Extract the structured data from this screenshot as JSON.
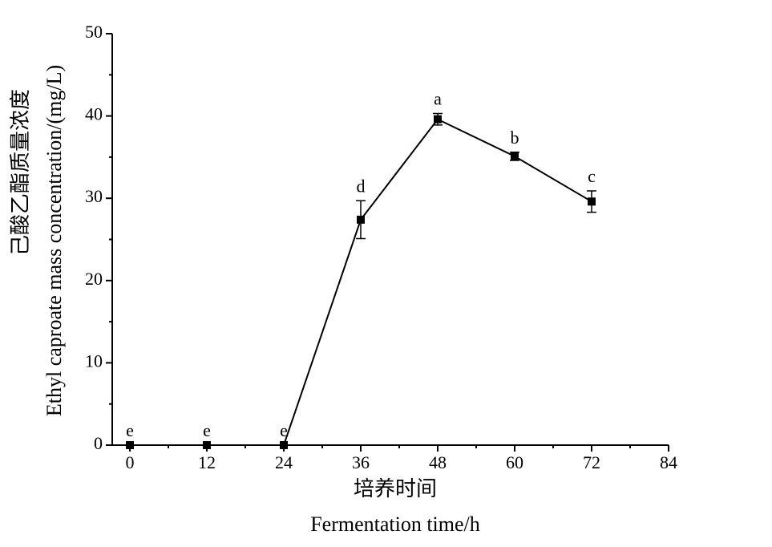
{
  "chart_data": {
    "type": "line",
    "x_label": [
      "培养时间",
      "Fermentation time/h"
    ],
    "y_label": [
      "己酸乙酯质量浓度",
      "Ethyl caproate mass concentration/(mg/L)"
    ],
    "x": [
      0,
      12,
      24,
      36,
      48,
      60,
      72
    ],
    "series": [
      {
        "color": "#000000",
        "values": [
          0,
          0,
          0,
          27.4,
          39.6,
          35.1,
          29.6
        ],
        "errors": [
          0,
          0,
          0,
          2.3,
          0.7,
          0.5,
          1.3
        ],
        "annotations": [
          "e",
          "e",
          "e",
          "d",
          "a",
          "b",
          "c"
        ]
      }
    ],
    "xlim": [
      -2.75,
      84
    ],
    "xticks": [
      0,
      12,
      24,
      36,
      48,
      60,
      72,
      84
    ],
    "ylim": [
      0,
      50
    ],
    "yticks": [
      0,
      10,
      20,
      30,
      40,
      50
    ],
    "grid": false
  }
}
